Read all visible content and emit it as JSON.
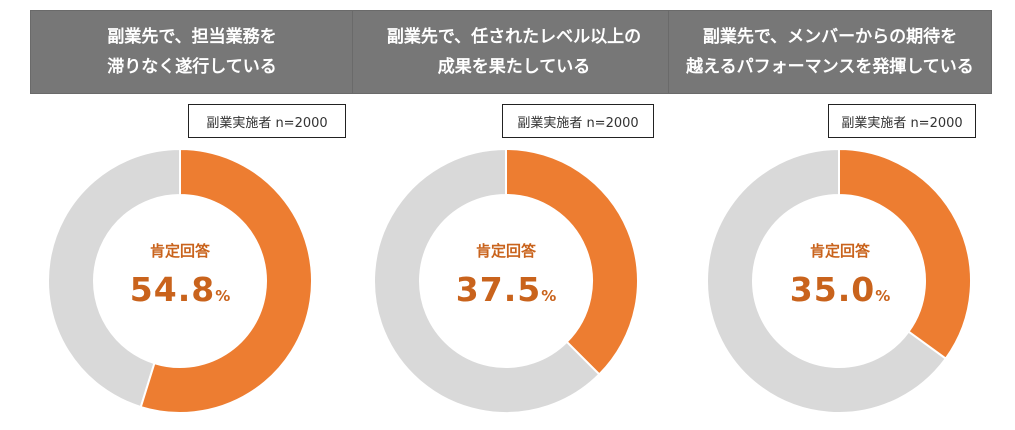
{
  "chart_data": [
    {
      "type": "pie",
      "title": [
        "副業先で、担当業務を",
        "滞りなく遂行している"
      ],
      "sample": "副業実施者 n=2000",
      "center_label": "肯定回答",
      "value": 54.8,
      "value_text": "54.8",
      "unit": "%",
      "colors": {
        "positive": "#ed7d31",
        "rest": "#d9d9d9"
      }
    },
    {
      "type": "pie",
      "title": [
        "副業先で、任されたレベル以上の",
        "成果を果たしている"
      ],
      "sample": "副業実施者 n=2000",
      "center_label": "肯定回答",
      "value": 37.5,
      "value_text": "37.5",
      "unit": "%",
      "colors": {
        "positive": "#ed7d31",
        "rest": "#d9d9d9"
      }
    },
    {
      "type": "pie",
      "title": [
        "副業先で、メンバーからの期待を",
        "越えるパフォーマンスを発揮している"
      ],
      "sample": "副業実施者 n=2000",
      "center_label": "肯定回答",
      "value": 35.0,
      "value_text": "35.0",
      "unit": "%",
      "colors": {
        "positive": "#ed7d31",
        "rest": "#d9d9d9"
      }
    }
  ]
}
